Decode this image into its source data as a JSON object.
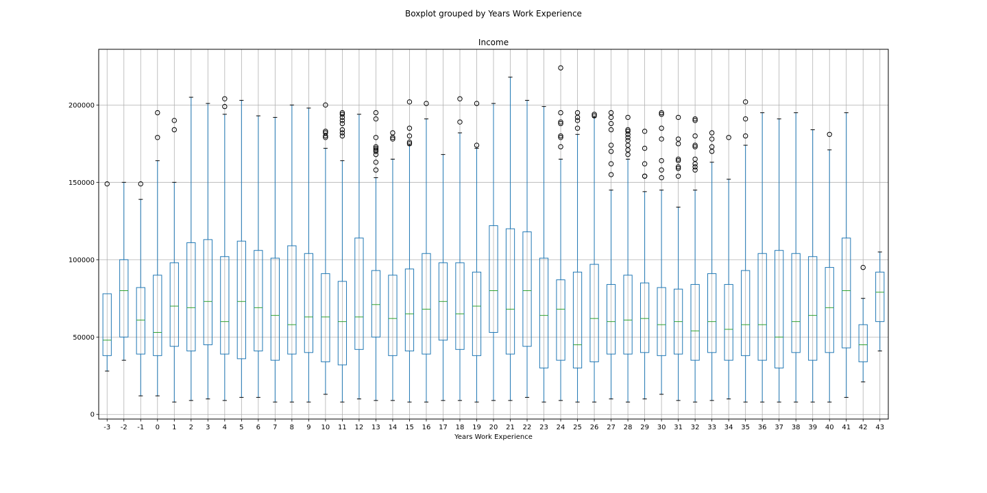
{
  "chart_data": {
    "type": "boxplot",
    "suptitle": "Boxplot grouped by Years Work Experience",
    "title": "Income",
    "xlabel": "Years Work Experience",
    "ylabel": "",
    "ylim": [
      -3000,
      236000
    ],
    "yticks": [
      0,
      50000,
      100000,
      150000,
      200000
    ],
    "grid": true,
    "colors": {
      "box": "#1f77b4",
      "median": "#2ca02c",
      "whisker": "#1f77b4",
      "cap": "#000000",
      "flier": "#000000",
      "grid": "#b0b0b0"
    },
    "categories": [
      "-3",
      "-2",
      "-1",
      "0",
      "1",
      "2",
      "3",
      "4",
      "5",
      "6",
      "7",
      "8",
      "9",
      "10",
      "11",
      "12",
      "13",
      "14",
      "15",
      "16",
      "17",
      "18",
      "19",
      "20",
      "21",
      "22",
      "23",
      "24",
      "25",
      "26",
      "27",
      "28",
      "29",
      "30",
      "31",
      "32",
      "33",
      "34",
      "35",
      "36",
      "37",
      "38",
      "39",
      "40",
      "41",
      "42",
      "43"
    ],
    "boxes": [
      {
        "whislo": 28000,
        "q1": 38000,
        "med": 48000,
        "q3": 78000,
        "whishi": 78000,
        "fliers": [
          149000
        ]
      },
      {
        "whislo": 35000,
        "q1": 50000,
        "med": 80000,
        "q3": 100000,
        "whishi": 150000,
        "fliers": []
      },
      {
        "whislo": 12000,
        "q1": 39000,
        "med": 61000,
        "q3": 82000,
        "whishi": 139000,
        "fliers": [
          149000
        ]
      },
      {
        "whislo": 12000,
        "q1": 38000,
        "med": 53000,
        "q3": 90000,
        "whishi": 164000,
        "fliers": [
          179000,
          195000
        ]
      },
      {
        "whislo": 8000,
        "q1": 44000,
        "med": 70000,
        "q3": 98000,
        "whishi": 150000,
        "fliers": [
          184000,
          190000
        ]
      },
      {
        "whislo": 9000,
        "q1": 41000,
        "med": 69000,
        "q3": 111000,
        "whishi": 205000,
        "fliers": []
      },
      {
        "whislo": 10000,
        "q1": 45000,
        "med": 73000,
        "q3": 113000,
        "whishi": 201000,
        "fliers": []
      },
      {
        "whislo": 9000,
        "q1": 39000,
        "med": 60000,
        "q3": 102000,
        "whishi": 194000,
        "fliers": [
          199000,
          204000
        ]
      },
      {
        "whislo": 11000,
        "q1": 36000,
        "med": 73000,
        "q3": 112000,
        "whishi": 203000,
        "fliers": []
      },
      {
        "whislo": 11000,
        "q1": 41000,
        "med": 69000,
        "q3": 106000,
        "whishi": 193000,
        "fliers": []
      },
      {
        "whislo": 8000,
        "q1": 35000,
        "med": 64000,
        "q3": 101000,
        "whishi": 192000,
        "fliers": []
      },
      {
        "whislo": 8000,
        "q1": 39000,
        "med": 58000,
        "q3": 109000,
        "whishi": 200000,
        "fliers": []
      },
      {
        "whislo": 8000,
        "q1": 40000,
        "med": 63000,
        "q3": 104000,
        "whishi": 198000,
        "fliers": []
      },
      {
        "whislo": 13000,
        "q1": 34000,
        "med": 63000,
        "q3": 91000,
        "whishi": 172000,
        "fliers": [
          179000,
          180000,
          182000,
          183000,
          200000
        ]
      },
      {
        "whislo": 8000,
        "q1": 32000,
        "med": 60000,
        "q3": 86000,
        "whishi": 164000,
        "fliers": [
          180000,
          182000,
          184000,
          188000,
          190000,
          192000,
          194000,
          195000
        ]
      },
      {
        "whislo": 10000,
        "q1": 42000,
        "med": 63000,
        "q3": 114000,
        "whishi": 194000,
        "fliers": []
      },
      {
        "whislo": 9000,
        "q1": 50000,
        "med": 71000,
        "q3": 93000,
        "whishi": 153000,
        "fliers": [
          158000,
          163000,
          168000,
          170000,
          171000,
          172000,
          173000,
          179000,
          191000,
          195000
        ]
      },
      {
        "whislo": 9000,
        "q1": 38000,
        "med": 62000,
        "q3": 90000,
        "whishi": 165000,
        "fliers": [
          178000,
          179000,
          182000
        ]
      },
      {
        "whislo": 8000,
        "q1": 41000,
        "med": 65000,
        "q3": 94000,
        "whishi": 174000,
        "fliers": [
          175000,
          176000,
          180000,
          185000,
          202000
        ]
      },
      {
        "whislo": 8000,
        "q1": 39000,
        "med": 68000,
        "q3": 104000,
        "whishi": 191000,
        "fliers": [
          201000
        ]
      },
      {
        "whislo": 9000,
        "q1": 48000,
        "med": 73000,
        "q3": 98000,
        "whishi": 168000,
        "fliers": []
      },
      {
        "whislo": 9000,
        "q1": 42000,
        "med": 65000,
        "q3": 98000,
        "whishi": 182000,
        "fliers": [
          189000,
          204000
        ]
      },
      {
        "whislo": 8000,
        "q1": 38000,
        "med": 70000,
        "q3": 92000,
        "whishi": 172000,
        "fliers": [
          174000,
          201000
        ]
      },
      {
        "whislo": 9000,
        "q1": 53000,
        "med": 80000,
        "q3": 122000,
        "whishi": 201000,
        "fliers": []
      },
      {
        "whislo": 9000,
        "q1": 39000,
        "med": 68000,
        "q3": 120000,
        "whishi": 218000,
        "fliers": []
      },
      {
        "whislo": 11000,
        "q1": 44000,
        "med": 80000,
        "q3": 118000,
        "whishi": 203000,
        "fliers": []
      },
      {
        "whislo": 8000,
        "q1": 30000,
        "med": 64000,
        "q3": 101000,
        "whishi": 199000,
        "fliers": []
      },
      {
        "whislo": 9000,
        "q1": 35000,
        "med": 68000,
        "q3": 87000,
        "whishi": 165000,
        "fliers": [
          173000,
          179000,
          180000,
          188000,
          189000,
          195000,
          224000
        ]
      },
      {
        "whislo": 8000,
        "q1": 30000,
        "med": 45000,
        "q3": 92000,
        "whishi": 181000,
        "fliers": [
          185000,
          190000,
          192000,
          195000
        ]
      },
      {
        "whislo": 8000,
        "q1": 34000,
        "med": 62000,
        "q3": 97000,
        "whishi": 192000,
        "fliers": [
          193000,
          194000
        ]
      },
      {
        "whislo": 10000,
        "q1": 39000,
        "med": 60000,
        "q3": 84000,
        "whishi": 145000,
        "fliers": [
          155000,
          162000,
          170000,
          174000,
          184000,
          188000,
          192000,
          195000
        ]
      },
      {
        "whislo": 8000,
        "q1": 39000,
        "med": 61000,
        "q3": 90000,
        "whishi": 165000,
        "fliers": [
          168000,
          171000,
          174000,
          177000,
          179000,
          181000,
          183000,
          184000,
          192000
        ]
      },
      {
        "whislo": 10000,
        "q1": 40000,
        "med": 62000,
        "q3": 85000,
        "whishi": 144000,
        "fliers": [
          154000,
          154000,
          162000,
          172000,
          183000
        ]
      },
      {
        "whislo": 13000,
        "q1": 38000,
        "med": 58000,
        "q3": 82000,
        "whishi": 145000,
        "fliers": [
          153000,
          158000,
          164000,
          178000,
          185000,
          194000,
          195000
        ]
      },
      {
        "whislo": 9000,
        "q1": 39000,
        "med": 60000,
        "q3": 81000,
        "whishi": 134000,
        "fliers": [
          154000,
          159000,
          160000,
          164000,
          165000,
          175000,
          178000,
          192000
        ]
      },
      {
        "whislo": 8000,
        "q1": 35000,
        "med": 54000,
        "q3": 84000,
        "whishi": 145000,
        "fliers": [
          158000,
          160000,
          162000,
          165000,
          173000,
          174000,
          180000,
          190000,
          191000
        ]
      },
      {
        "whislo": 9000,
        "q1": 40000,
        "med": 60000,
        "q3": 91000,
        "whishi": 163000,
        "fliers": [
          170000,
          173000,
          178000,
          182000
        ]
      },
      {
        "whislo": 10000,
        "q1": 35000,
        "med": 55000,
        "q3": 84000,
        "whishi": 152000,
        "fliers": [
          179000
        ]
      },
      {
        "whislo": 8000,
        "q1": 38000,
        "med": 58000,
        "q3": 93000,
        "whishi": 174000,
        "fliers": [
          180000,
          191000,
          202000
        ]
      },
      {
        "whislo": 8000,
        "q1": 35000,
        "med": 58000,
        "q3": 104000,
        "whishi": 195000,
        "fliers": []
      },
      {
        "whislo": 8000,
        "q1": 30000,
        "med": 50000,
        "q3": 106000,
        "whishi": 191000,
        "fliers": []
      },
      {
        "whislo": 8000,
        "q1": 40000,
        "med": 60000,
        "q3": 104000,
        "whishi": 195000,
        "fliers": []
      },
      {
        "whislo": 8000,
        "q1": 35000,
        "med": 64000,
        "q3": 102000,
        "whishi": 184000,
        "fliers": []
      },
      {
        "whislo": 8000,
        "q1": 40000,
        "med": 69000,
        "q3": 95000,
        "whishi": 171000,
        "fliers": [
          181000
        ]
      },
      {
        "whislo": 11000,
        "q1": 43000,
        "med": 80000,
        "q3": 114000,
        "whishi": 195000,
        "fliers": []
      },
      {
        "whislo": 21000,
        "q1": 34000,
        "med": 45000,
        "q3": 58000,
        "whishi": 75000,
        "fliers": [
          95000
        ]
      },
      {
        "whislo": 41000,
        "q1": 60000,
        "med": 79000,
        "q3": 92000,
        "whishi": 105000,
        "fliers": []
      }
    ]
  }
}
